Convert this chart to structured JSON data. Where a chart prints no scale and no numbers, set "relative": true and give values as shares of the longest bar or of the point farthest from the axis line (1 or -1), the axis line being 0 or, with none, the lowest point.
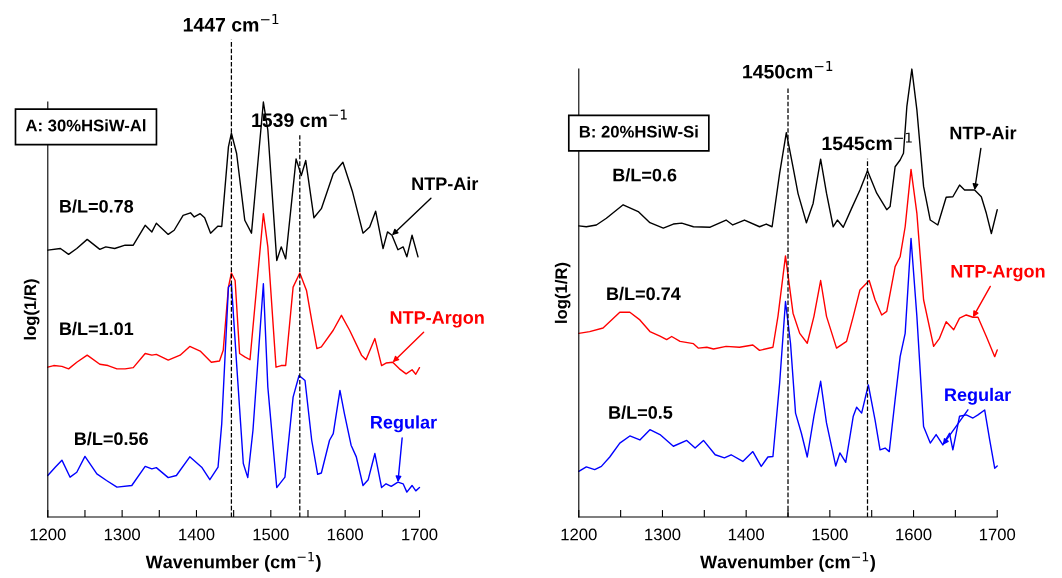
{
  "chart_data": [
    {
      "type": "line",
      "title": "A: 30%HSiW-Al",
      "xlabel": "Wavenumber (cm$^{−1}$)",
      "ylabel": "log(1/R)",
      "relative": true,
      "legend": false,
      "grid": false,
      "tick_labels": "x",
      "xlim": [
        1200,
        1700
      ],
      "xticks": [
        1200,
        {
          "value": 1250,
          "label": null
        },
        1300,
        {
          "value": 1350,
          "label": null
        },
        1400,
        {
          "value": 1450,
          "label": null
        },
        1500,
        {
          "value": 1550,
          "label": null
        },
        1600,
        {
          "value": 1650,
          "label": null
        },
        1700
      ],
      "annotations": [
        "B/L=0.78",
        "B/L=1.01",
        "B/L=0.56"
      ],
      "ref_lines": [
        {
          "axis": "x",
          "value": 1447,
          "label": "1447 cm$^{−1}$",
          "line_style": "dashed",
          "color": "#000000"
        },
        {
          "axis": "x",
          "value": 1539,
          "label": "1539 cm$^{−1}$",
          "line_style": "dashed",
          "color": "#000000"
        }
      ],
      "series": [
        {
          "name": "NTP-Air",
          "color": "#000000",
          "x": [
            1200,
            1217,
            1228,
            1239,
            1253,
            1270,
            1278,
            1290,
            1304,
            1315,
            1331,
            1340,
            1346,
            1362,
            1370,
            1382,
            1392,
            1397,
            1405,
            1411,
            1419,
            1429,
            1434,
            1443,
            1447,
            1454,
            1465,
            1474,
            1490,
            1496,
            1508,
            1514,
            1520,
            1534,
            1541,
            1547,
            1558,
            1568,
            1584,
            1597,
            1610,
            1624,
            1633,
            1641,
            1651,
            1657,
            1663,
            1671,
            1678,
            1683,
            1690,
            1698
          ],
          "values": [
            0.643,
            0.647,
            0.633,
            0.647,
            0.669,
            0.645,
            0.651,
            0.647,
            0.655,
            0.655,
            0.703,
            0.687,
            0.708,
            0.681,
            0.691,
            0.727,
            0.733,
            0.723,
            0.731,
            0.721,
            0.684,
            0.701,
            0.7,
            0.892,
            0.925,
            0.876,
            0.715,
            0.684,
            1.0,
            0.932,
            0.618,
            0.651,
            0.622,
            0.863,
            0.823,
            0.859,
            0.721,
            0.743,
            0.827,
            0.855,
            0.783,
            0.684,
            0.699,
            0.737,
            0.647,
            0.687,
            0.679,
            0.644,
            0.651,
            0.627,
            0.679,
            0.627
          ]
        },
        {
          "name": "NTP-Argon",
          "color": "#ff0000",
          "x": [
            1200,
            1208,
            1219,
            1228,
            1239,
            1253,
            1270,
            1281,
            1293,
            1304,
            1315,
            1331,
            1340,
            1346,
            1362,
            1378,
            1391,
            1405,
            1420,
            1431,
            1436,
            1443,
            1447,
            1452,
            1458,
            1465,
            1472,
            1490,
            1496,
            1507,
            1514,
            1520,
            1530,
            1539,
            1548,
            1555,
            1562,
            1568,
            1584,
            1595,
            1606,
            1622,
            1628,
            1640,
            1649,
            1655,
            1664,
            1673,
            1682,
            1690,
            1695,
            1700
          ],
          "values": [
            0.361,
            0.365,
            0.363,
            0.357,
            0.373,
            0.39,
            0.368,
            0.365,
            0.357,
            0.357,
            0.36,
            0.394,
            0.39,
            0.392,
            0.378,
            0.39,
            0.411,
            0.4,
            0.373,
            0.376,
            0.402,
            0.554,
            0.588,
            0.57,
            0.394,
            0.386,
            0.379,
            0.731,
            0.651,
            0.361,
            0.365,
            0.365,
            0.554,
            0.588,
            0.546,
            0.474,
            0.406,
            0.41,
            0.45,
            0.486,
            0.45,
            0.39,
            0.379,
            0.43,
            0.365,
            0.371,
            0.373,
            0.357,
            0.345,
            0.355,
            0.344,
            0.36
          ]
        },
        {
          "name": "Regular",
          "color": "#0000ff",
          "x": [
            1200,
            1210,
            1219,
            1230,
            1239,
            1250,
            1266,
            1279,
            1293,
            1313,
            1331,
            1340,
            1346,
            1362,
            1373,
            1391,
            1407,
            1418,
            1429,
            1434,
            1443,
            1447,
            1454,
            1463,
            1469,
            1476,
            1490,
            1496,
            1508,
            1519,
            1530,
            1538,
            1546,
            1555,
            1563,
            1568,
            1579,
            1584,
            1593,
            1599,
            1608,
            1615,
            1624,
            1631,
            1640,
            1649,
            1655,
            1662,
            1671,
            1678,
            1683,
            1690,
            1695,
            1700
          ],
          "values": [
            0.1,
            0.12,
            0.137,
            0.096,
            0.108,
            0.146,
            0.104,
            0.088,
            0.072,
            0.076,
            0.122,
            0.116,
            0.119,
            0.095,
            0.1,
            0.145,
            0.12,
            0.09,
            0.12,
            0.225,
            0.554,
            0.562,
            0.369,
            0.129,
            0.095,
            0.209,
            0.562,
            0.313,
            0.071,
            0.096,
            0.289,
            0.341,
            0.329,
            0.185,
            0.103,
            0.106,
            0.185,
            0.201,
            0.305,
            0.249,
            0.173,
            0.145,
            0.076,
            0.09,
            0.153,
            0.071,
            0.08,
            0.074,
            0.084,
            0.08,
            0.06,
            0.076,
            0.063,
            0.071
          ]
        }
      ]
    },
    {
      "type": "line",
      "title": "B: 20%HSiW-Si",
      "xlabel": "Wavenumber (cm$^{−1}$)",
      "ylabel": "log(1/R)",
      "relative": true,
      "legend": false,
      "grid": false,
      "tick_labels": "x",
      "xlim": [
        1200,
        1700
      ],
      "xticks": [
        1200,
        {
          "value": 1250,
          "label": null
        },
        1300,
        {
          "value": 1350,
          "label": null
        },
        1400,
        {
          "value": 1450,
          "label": null
        },
        1500,
        {
          "value": 1550,
          "label": null
        },
        1600,
        {
          "value": 1650,
          "label": null
        },
        1700
      ],
      "annotations": [
        "B/L=0.6",
        "B/L=0.74",
        "B/L=0.5"
      ],
      "ref_lines": [
        {
          "axis": "x",
          "value": 1450,
          "label": "1450cm$^{−1}$",
          "line_style": "dashed",
          "color": "#000000"
        },
        {
          "axis": "x",
          "value": 1545,
          "label": "1545cm$^{−1}$",
          "line_style": "dashed",
          "color": "#000000"
        }
      ],
      "series": [
        {
          "name": "NTP-Air",
          "color": "#000000",
          "x": [
            1200,
            1209,
            1221,
            1233,
            1253,
            1271,
            1285,
            1301,
            1313,
            1323,
            1337,
            1357,
            1376,
            1384,
            1398,
            1416,
            1424,
            1431,
            1440,
            1448,
            1456,
            1462,
            1472,
            1480,
            1489,
            1496,
            1504,
            1509,
            1516,
            1526,
            1536,
            1545,
            1556,
            1568,
            1572,
            1578,
            1584,
            1588,
            1592,
            1598,
            1604,
            1612,
            1620,
            1629,
            1639,
            1647,
            1655,
            1661,
            1673,
            1681,
            1687,
            1693,
            1700
          ],
          "values": [
            0.65,
            0.648,
            0.652,
            0.667,
            0.697,
            0.682,
            0.657,
            0.645,
            0.654,
            0.656,
            0.648,
            0.647,
            0.663,
            0.652,
            0.663,
            0.648,
            0.654,
            0.648,
            0.767,
            0.858,
            0.781,
            0.722,
            0.657,
            0.7,
            0.799,
            0.723,
            0.648,
            0.663,
            0.647,
            0.689,
            0.73,
            0.773,
            0.723,
            0.686,
            0.693,
            0.782,
            0.797,
            0.812,
            0.916,
            1.0,
            0.909,
            0.738,
            0.663,
            0.652,
            0.714,
            0.715,
            0.741,
            0.73,
            0.73,
            0.715,
            0.678,
            0.633,
            0.686
          ]
        },
        {
          "name": "NTP-Argon",
          "color": "#ff0000",
          "x": [
            1200,
            1213,
            1229,
            1249,
            1261,
            1273,
            1285,
            1297,
            1305,
            1311,
            1321,
            1337,
            1343,
            1353,
            1361,
            1376,
            1392,
            1408,
            1416,
            1432,
            1438,
            1447,
            1456,
            1464,
            1473,
            1481,
            1489,
            1496,
            1508,
            1520,
            1528,
            1536,
            1547,
            1554,
            1562,
            1568,
            1578,
            1584,
            1590,
            1597,
            1604,
            1612,
            1624,
            1631,
            1639,
            1648,
            1655,
            1663,
            1671,
            1677,
            1687,
            1697,
            1700
          ],
          "values": [
            0.41,
            0.414,
            0.422,
            0.457,
            0.457,
            0.44,
            0.414,
            0.404,
            0.396,
            0.403,
            0.392,
            0.387,
            0.377,
            0.379,
            0.375,
            0.381,
            0.379,
            0.384,
            0.372,
            0.379,
            0.448,
            0.583,
            0.455,
            0.41,
            0.388,
            0.448,
            0.528,
            0.448,
            0.377,
            0.392,
            0.448,
            0.507,
            0.528,
            0.485,
            0.451,
            0.459,
            0.559,
            0.581,
            0.648,
            0.776,
            0.678,
            0.485,
            0.381,
            0.399,
            0.436,
            0.418,
            0.444,
            0.451,
            0.446,
            0.446,
            0.403,
            0.358,
            0.373
          ]
        },
        {
          "name": "Regular",
          "color": "#0000ff",
          "x": [
            1200,
            1209,
            1219,
            1227,
            1237,
            1249,
            1261,
            1273,
            1285,
            1297,
            1313,
            1329,
            1339,
            1349,
            1363,
            1374,
            1382,
            1396,
            1408,
            1418,
            1426,
            1432,
            1440,
            1447,
            1453,
            1459,
            1466,
            1473,
            1481,
            1489,
            1496,
            1507,
            1512,
            1519,
            1528,
            1532,
            1538,
            1546,
            1554,
            1560,
            1566,
            1571,
            1578,
            1584,
            1590,
            1597,
            1604,
            1612,
            1620,
            1627,
            1635,
            1643,
            1647,
            1655,
            1663,
            1671,
            1677,
            1685,
            1691,
            1697,
            1700
          ],
          "values": [
            0.102,
            0.112,
            0.106,
            0.113,
            0.134,
            0.165,
            0.181,
            0.172,
            0.195,
            0.184,
            0.158,
            0.171,
            0.154,
            0.171,
            0.139,
            0.132,
            0.139,
            0.124,
            0.146,
            0.113,
            0.134,
            0.135,
            0.299,
            0.481,
            0.388,
            0.232,
            0.187,
            0.134,
            0.225,
            0.303,
            0.21,
            0.114,
            0.143,
            0.122,
            0.225,
            0.245,
            0.232,
            0.295,
            0.217,
            0.15,
            0.154,
            0.146,
            0.262,
            0.358,
            0.41,
            0.622,
            0.448,
            0.202,
            0.165,
            0.184,
            0.161,
            0.187,
            0.15,
            0.225,
            0.228,
            0.221,
            0.228,
            0.239,
            0.172,
            0.109,
            0.114
          ]
        }
      ]
    }
  ]
}
